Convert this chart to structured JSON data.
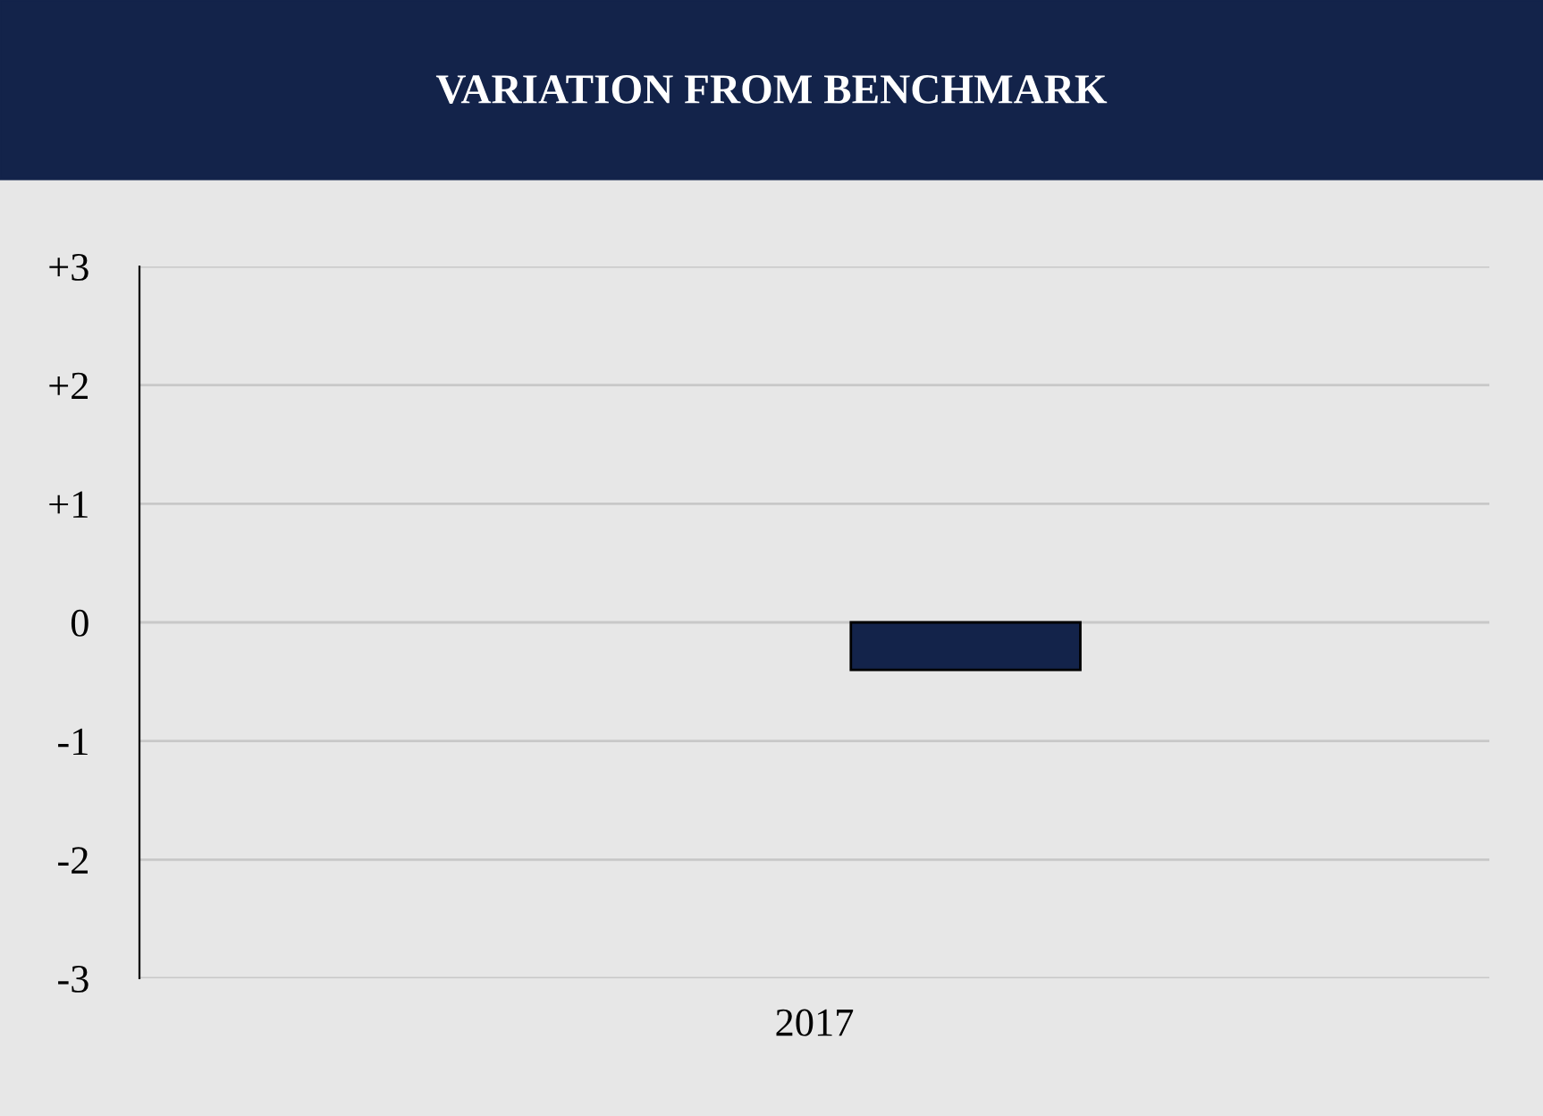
{
  "chart_data": {
    "type": "bar",
    "title": "VARIATION FROM BENCHMARK",
    "categories": [
      "2017"
    ],
    "series": [
      {
        "color": "#13234a",
        "values": [
          -0.4
        ]
      }
    ],
    "ylim": [
      -3,
      3
    ],
    "yticks": [
      {
        "value": 3,
        "label": "+3"
      },
      {
        "value": 2,
        "label": "+2"
      },
      {
        "value": 1,
        "label": "+1"
      },
      0,
      -1,
      -2,
      -3
    ],
    "grid": "y"
  }
}
